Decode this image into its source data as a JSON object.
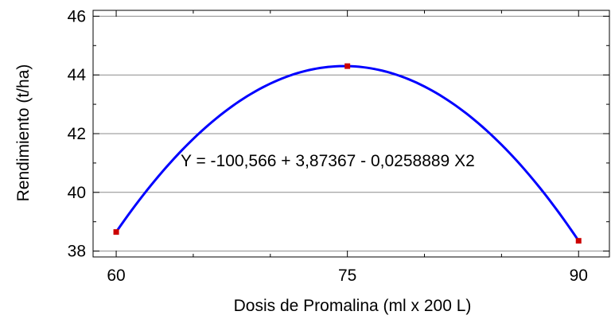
{
  "chart_data": {
    "type": "line",
    "title": "",
    "xlabel": "Dosis de Promalina (ml  x 200 L)",
    "ylabel": "Rendimiento (t/ha)",
    "xlim": [
      58.5,
      92
    ],
    "ylim": [
      37.8,
      46.2
    ],
    "x_ticks": [
      60,
      75,
      90
    ],
    "x_tick_labels": [
      "60",
      "75",
      "90"
    ],
    "x_minor_ticks": [
      65,
      70,
      80,
      85
    ],
    "y_ticks": [
      38,
      40,
      42,
      44,
      46
    ],
    "y_tick_labels": [
      "38",
      "40",
      "42",
      "44",
      "46"
    ],
    "grid": "horizontal",
    "annotation": "Y = -100,566 + 3,87367 -  0,0258889 X2",
    "fit": {
      "intercept": -100.566,
      "linear": 3.87367,
      "quadratic": -0.0258889
    },
    "series": [
      {
        "type": "points",
        "color": "#cc0000",
        "points": [
          {
            "x": 60,
            "y": 38.65
          },
          {
            "x": 75,
            "y": 44.3
          },
          {
            "x": 90,
            "y": 38.35
          }
        ]
      },
      {
        "type": "curve",
        "color": "#0000ff",
        "x_range": [
          60,
          90
        ]
      }
    ]
  }
}
